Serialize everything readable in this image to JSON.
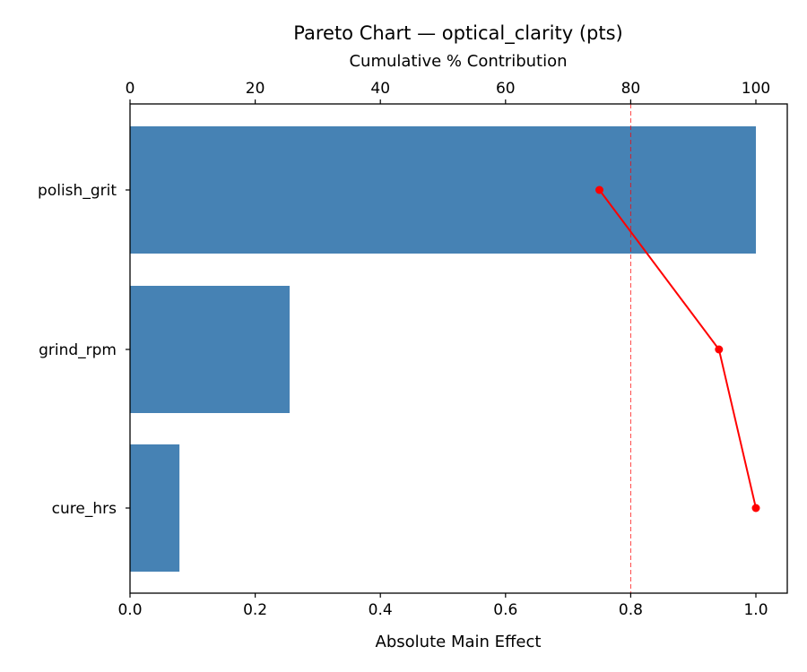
{
  "chart_data": {
    "type": "bar",
    "orientation": "horizontal",
    "title": "Pareto Chart — optical_clarity (pts)",
    "xlabel": "Absolute Main Effect",
    "x2label": "Cumulative % Contribution",
    "ylabel": "",
    "categories": [
      "polish_grit",
      "grind_rpm",
      "cure_hrs"
    ],
    "series": [
      {
        "name": "Absolute Main Effect",
        "type": "bar",
        "color": "#4682b4",
        "values": [
          1.0,
          0.255,
          0.079
        ]
      },
      {
        "name": "Cumulative % Contribution",
        "type": "line",
        "color": "#ff0000",
        "axis": "top",
        "values": [
          75.0,
          94.1,
          100.0
        ]
      }
    ],
    "xlim": [
      0,
      1.05
    ],
    "x2lim": [
      0,
      105
    ],
    "xticks": [
      "0.0",
      "0.2",
      "0.4",
      "0.6",
      "0.8",
      "1.0"
    ],
    "x2ticks": [
      "0",
      "20",
      "40",
      "60",
      "80",
      "100"
    ],
    "reference_line": {
      "axis": "top",
      "value": 80,
      "style": "dashed",
      "color": "#ff0000"
    },
    "grid": false,
    "legend": null
  }
}
